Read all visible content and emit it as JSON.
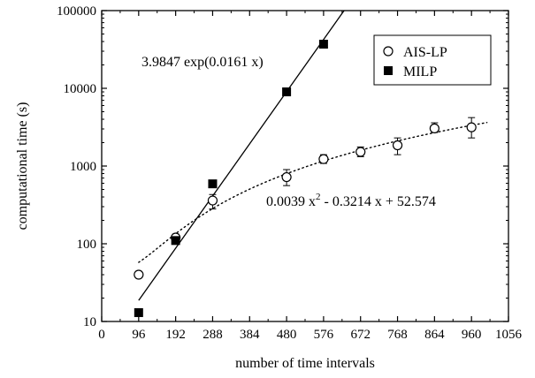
{
  "chart_data": {
    "type": "scatter",
    "xlabel": "number of time intervals",
    "ylabel": "computational time (s)",
    "xlim": [
      0,
      1056
    ],
    "ylim": [
      10,
      100000
    ],
    "y_scale": "log",
    "x_ticks": [
      0,
      96,
      192,
      288,
      384,
      480,
      576,
      672,
      768,
      864,
      960,
      1056
    ],
    "y_ticks": [
      10,
      100,
      1000,
      10000,
      100000
    ],
    "y_tick_labels": [
      "10",
      "100",
      "1000",
      "10000",
      "100000"
    ],
    "legend_position": "top-right",
    "series": [
      {
        "name": "AIS-LP",
        "marker": "open-circle",
        "x": [
          96,
          192,
          288,
          480,
          576,
          672,
          768,
          864,
          960
        ],
        "y": [
          40,
          120,
          360,
          720,
          1230,
          1520,
          1850,
          3050,
          3150
        ],
        "y_low": [
          37,
          108,
          280,
          560,
          1080,
          1320,
          1400,
          2700,
          2300
        ],
        "y_high": [
          44,
          133,
          430,
          900,
          1400,
          1760,
          2300,
          3600,
          4200
        ]
      },
      {
        "name": "MILP",
        "marker": "filled-square",
        "x": [
          96,
          192,
          288,
          480,
          576
        ],
        "y": [
          13,
          110,
          590,
          9000,
          37000
        ]
      }
    ],
    "fits": [
      {
        "series": "MILP",
        "style": "solid",
        "formula": "a*exp(b*x)",
        "a": 3.9847,
        "b": 0.0161,
        "x_range": [
          96,
          680
        ],
        "label": "3.9847 exp(0.0161 x)"
      },
      {
        "series": "AIS-LP",
        "style": "dotted",
        "formula": "c2*x^2 + c1*x + c0",
        "c2": 0.0039,
        "c1": -0.3214,
        "c0": 52.574,
        "x_range": [
          96,
          1000
        ],
        "label_main": "0.0039 x",
        "label_sup": "2",
        "label_rest": " - 0.3214 x + 52.574"
      }
    ]
  }
}
